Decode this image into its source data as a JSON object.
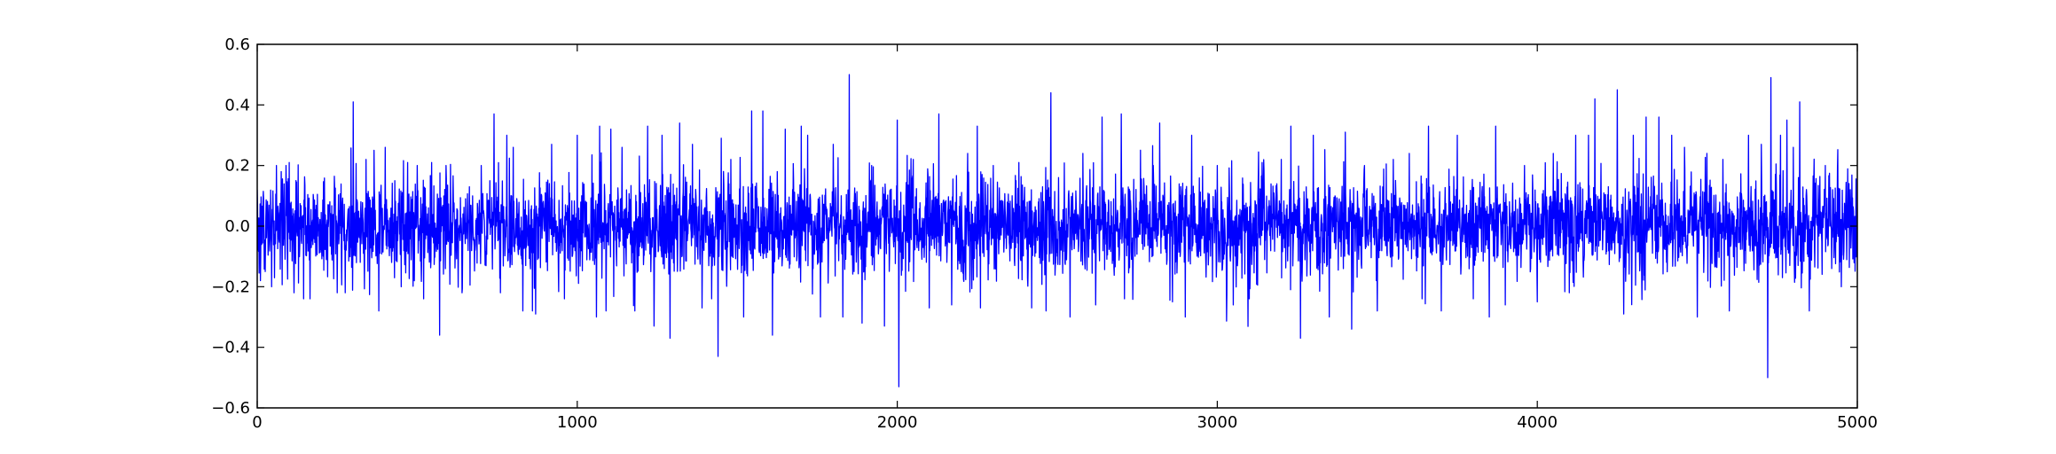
{
  "chart_data": {
    "type": "line",
    "title": "",
    "xlabel": "",
    "ylabel": "",
    "xlim": [
      0,
      5000
    ],
    "ylim": [
      -0.6,
      0.6
    ],
    "xticks": [
      0,
      1000,
      2000,
      3000,
      4000,
      5000
    ],
    "xtick_labels": [
      "0",
      "1000",
      "2000",
      "3000",
      "4000",
      "5000"
    ],
    "yticks": [
      -0.6,
      -0.4,
      -0.2,
      0.0,
      0.2,
      0.4,
      0.6
    ],
    "ytick_labels": [
      "−0.6",
      "−0.4",
      "−0.2",
      "0.0",
      "0.2",
      "0.4",
      "0.6"
    ],
    "grid": false,
    "legend": "none",
    "line_color": "#0000ff",
    "series": [
      {
        "n_points": 5000,
        "x_step": 1,
        "noise_std": 0.08,
        "points": [
          [
            0,
            0.12
          ],
          [
            10,
            -0.18
          ],
          [
            25,
            -0.15
          ],
          [
            45,
            -0.2
          ],
          [
            60,
            0.2
          ],
          [
            75,
            0.18
          ],
          [
            90,
            0.2
          ],
          [
            100,
            0.21
          ],
          [
            115,
            -0.22
          ],
          [
            145,
            -0.24
          ],
          [
            165,
            -0.24
          ],
          [
            250,
            -0.22
          ],
          [
            275,
            -0.22
          ],
          [
            300,
            0.41
          ],
          [
            340,
            0.22
          ],
          [
            365,
            0.25
          ],
          [
            380,
            -0.28
          ],
          [
            400,
            0.26
          ],
          [
            430,
            0.15
          ],
          [
            450,
            -0.2
          ],
          [
            470,
            0.21
          ],
          [
            500,
            0.2
          ],
          [
            520,
            -0.24
          ],
          [
            545,
            0.21
          ],
          [
            570,
            -0.36
          ],
          [
            590,
            0.2
          ],
          [
            640,
            -0.22
          ],
          [
            700,
            0.2
          ],
          [
            740,
            0.37
          ],
          [
            760,
            -0.22
          ],
          [
            780,
            0.3
          ],
          [
            800,
            0.26
          ],
          [
            830,
            -0.28
          ],
          [
            860,
            -0.28
          ],
          [
            870,
            -0.29
          ],
          [
            920,
            0.27
          ],
          [
            960,
            -0.24
          ],
          [
            1000,
            0.3
          ],
          [
            1060,
            -0.3
          ],
          [
            1070,
            0.33
          ],
          [
            1090,
            -0.28
          ],
          [
            1105,
            0.32
          ],
          [
            1140,
            0.26
          ],
          [
            1180,
            -0.28
          ],
          [
            1220,
            0.33
          ],
          [
            1240,
            -0.33
          ],
          [
            1265,
            0.3
          ],
          [
            1290,
            -0.37
          ],
          [
            1320,
            0.34
          ],
          [
            1360,
            0.27
          ],
          [
            1390,
            -0.27
          ],
          [
            1420,
            -0.24
          ],
          [
            1440,
            -0.43
          ],
          [
            1450,
            0.29
          ],
          [
            1480,
            0.22
          ],
          [
            1520,
            -0.3
          ],
          [
            1545,
            0.38
          ],
          [
            1580,
            0.38
          ],
          [
            1610,
            -0.36
          ],
          [
            1650,
            0.32
          ],
          [
            1700,
            0.33
          ],
          [
            1720,
            0.3
          ],
          [
            1760,
            -0.3
          ],
          [
            1800,
            0.27
          ],
          [
            1830,
            -0.3
          ],
          [
            1850,
            0.5
          ],
          [
            1890,
            -0.32
          ],
          [
            1920,
            0.2
          ],
          [
            1960,
            -0.33
          ],
          [
            2000,
            0.35
          ],
          [
            2005,
            -0.53
          ],
          [
            2050,
            0.22
          ],
          [
            2100,
            -0.27
          ],
          [
            2130,
            0.37
          ],
          [
            2170,
            -0.26
          ],
          [
            2220,
            0.24
          ],
          [
            2250,
            0.33
          ],
          [
            2260,
            -0.27
          ],
          [
            2300,
            0.2
          ],
          [
            2380,
            0.21
          ],
          [
            2420,
            -0.27
          ],
          [
            2465,
            -0.28
          ],
          [
            2480,
            0.44
          ],
          [
            2540,
            -0.3
          ],
          [
            2580,
            0.24
          ],
          [
            2620,
            -0.26
          ],
          [
            2640,
            0.36
          ],
          [
            2700,
            0.37
          ],
          [
            2710,
            -0.24
          ],
          [
            2800,
            0.2
          ],
          [
            2820,
            0.34
          ],
          [
            2860,
            -0.25
          ],
          [
            2900,
            -0.3
          ],
          [
            2920,
            0.3
          ],
          [
            3000,
            0.2
          ],
          [
            3050,
            -0.26
          ],
          [
            3100,
            -0.24
          ],
          [
            3140,
            0.21
          ],
          [
            3200,
            0.22
          ],
          [
            3230,
            0.33
          ],
          [
            3260,
            -0.37
          ],
          [
            3300,
            0.3
          ],
          [
            3350,
            -0.3
          ],
          [
            3400,
            0.31
          ],
          [
            3420,
            -0.34
          ],
          [
            3460,
            0.2
          ],
          [
            3500,
            -0.28
          ],
          [
            3550,
            0.22
          ],
          [
            3600,
            0.24
          ],
          [
            3640,
            -0.24
          ],
          [
            3660,
            0.33
          ],
          [
            3700,
            -0.28
          ],
          [
            3750,
            0.3
          ],
          [
            3800,
            -0.24
          ],
          [
            3850,
            -0.3
          ],
          [
            3870,
            0.33
          ],
          [
            3900,
            -0.26
          ],
          [
            3960,
            0.2
          ],
          [
            4000,
            -0.25
          ],
          [
            4050,
            0.24
          ],
          [
            4100,
            -0.22
          ],
          [
            4120,
            0.3
          ],
          [
            4160,
            0.3
          ],
          [
            4180,
            0.42
          ],
          [
            4250,
            0.45
          ],
          [
            4270,
            -0.29
          ],
          [
            4300,
            0.3
          ],
          [
            4340,
            0.36
          ],
          [
            4380,
            0.36
          ],
          [
            4420,
            0.3
          ],
          [
            4460,
            0.26
          ],
          [
            4500,
            -0.3
          ],
          [
            4530,
            0.24
          ],
          [
            4580,
            0.22
          ],
          [
            4600,
            -0.28
          ],
          [
            4660,
            0.3
          ],
          [
            4700,
            0.27
          ],
          [
            4720,
            -0.5
          ],
          [
            4730,
            0.49
          ],
          [
            4760,
            0.3
          ],
          [
            4780,
            0.35
          ],
          [
            4800,
            0.26
          ],
          [
            4820,
            0.41
          ],
          [
            4850,
            -0.28
          ],
          [
            4900,
            0.2
          ],
          [
            4950,
            -0.2
          ],
          [
            5000,
            0.0
          ]
        ]
      }
    ]
  }
}
